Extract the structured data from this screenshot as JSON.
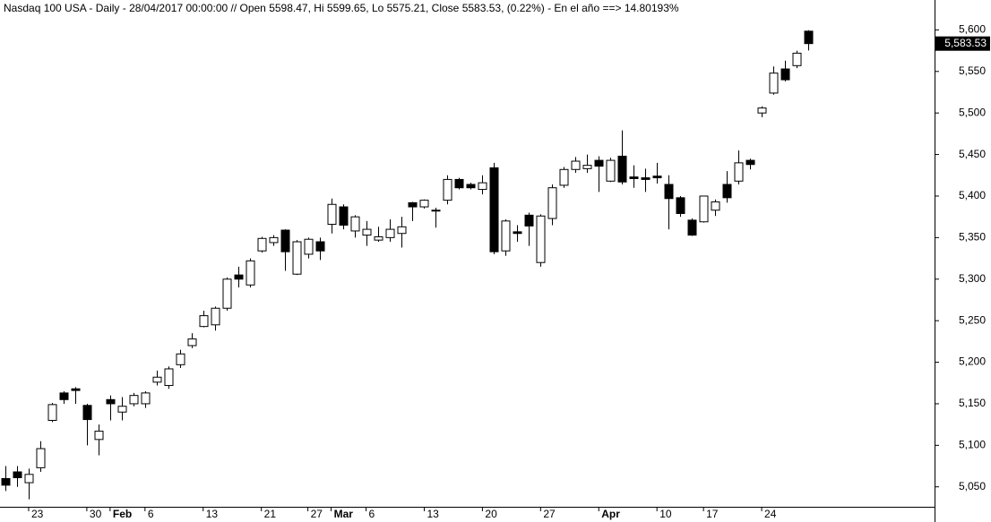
{
  "chart_data": {
    "type": "candlestick",
    "title": "Nasdaq 100 USA - Daily - 28/04/2017 00:00:00 // Open 5598.47, Hi 5599.65, Lo 5575.21, Close 5583.53, (0.22%) - En el año ==> 14.80193%",
    "categories": [
      null,
      null,
      "23",
      null,
      null,
      null,
      null,
      "30",
      null,
      "Feb",
      null,
      null,
      "6",
      null,
      null,
      null,
      null,
      "13",
      null,
      null,
      null,
      null,
      "21",
      null,
      null,
      null,
      "27",
      null,
      "Mar",
      null,
      null,
      "6",
      null,
      null,
      null,
      null,
      "13",
      null,
      null,
      null,
      null,
      "20",
      null,
      null,
      null,
      null,
      "27",
      null,
      null,
      null,
      null,
      "Apr",
      null,
      null,
      null,
      null,
      "10",
      null,
      null,
      null,
      "17",
      null,
      null,
      null,
      null,
      "24",
      null,
      null,
      null,
      null
    ],
    "open": [
      5060,
      5068,
      5055,
      5073,
      5130,
      5163,
      5168,
      5148,
      5107,
      5155,
      5140,
      5150,
      5150,
      5176,
      5172,
      5197,
      5220,
      5243,
      5245,
      5265,
      5305,
      5293,
      5334,
      5344,
      5359,
      5306,
      5330,
      5345,
      5366,
      5387,
      5358,
      5353,
      5347,
      5350,
      5355,
      5392,
      5387,
      5383,
      5395,
      5420,
      5414,
      5408,
      5434,
      5334,
      5357,
      5377,
      5320,
      5373,
      5413,
      5432,
      5433,
      5443,
      5418,
      5448,
      5423,
      5422,
      5424,
      5414,
      5398,
      5371,
      5369,
      5383,
      5414,
      5418,
      5443,
      5500,
      5524,
      5553,
      5557,
      5598.47
    ],
    "high": [
      5075,
      5075,
      5072,
      5105,
      5151,
      5165,
      5170,
      5150,
      5125,
      5160,
      5158,
      5163,
      5165,
      5190,
      5195,
      5215,
      5235,
      5262,
      5267,
      5302,
      5315,
      5325,
      5351,
      5353,
      5360,
      5347,
      5350,
      5350,
      5397,
      5390,
      5377,
      5370,
      5363,
      5372,
      5375,
      5393,
      5396,
      5386,
      5425,
      5422,
      5416,
      5425,
      5440,
      5372,
      5365,
      5380,
      5378,
      5414,
      5435,
      5447,
      5450,
      5448,
      5446,
      5479,
      5437,
      5433,
      5440,
      5425,
      5400,
      5373,
      5400,
      5396,
      5430,
      5455,
      5445,
      5508,
      5556,
      5563,
      5575,
      5599.65
    ],
    "low": [
      5045,
      5050,
      5035,
      5068,
      5128,
      5150,
      5150,
      5100,
      5088,
      5130,
      5130,
      5147,
      5145,
      5172,
      5168,
      5193,
      5217,
      5242,
      5238,
      5262,
      5290,
      5290,
      5332,
      5340,
      5310,
      5305,
      5325,
      5323,
      5355,
      5360,
      5350,
      5340,
      5345,
      5345,
      5338,
      5370,
      5385,
      5362,
      5390,
      5408,
      5408,
      5402,
      5330,
      5328,
      5345,
      5340,
      5315,
      5365,
      5410,
      5428,
      5428,
      5405,
      5417,
      5414,
      5410,
      5405,
      5415,
      5360,
      5375,
      5352,
      5368,
      5376,
      5392,
      5414,
      5432,
      5495,
      5522,
      5538,
      5554,
      5575.21
    ],
    "close": [
      5052,
      5061,
      5065,
      5096,
      5149,
      5155,
      5166,
      5131,
      5117,
      5150,
      5147,
      5160,
      5163,
      5182,
      5192,
      5210,
      5228,
      5256,
      5265,
      5300,
      5300,
      5322,
      5349,
      5350,
      5333,
      5345,
      5348,
      5334,
      5390,
      5365,
      5375,
      5360,
      5351,
      5360,
      5363,
      5387,
      5395,
      5382,
      5420,
      5410,
      5410,
      5416,
      5333,
      5370,
      5355,
      5364,
      5376,
      5410,
      5432,
      5442,
      5437,
      5436,
      5443,
      5417,
      5421,
      5420,
      5422,
      5397,
      5379,
      5353,
      5400,
      5393,
      5398,
      5440,
      5438,
      5506,
      5548,
      5540,
      5572,
      5583.53
    ],
    "close_label": "5,583.53",
    "up_color": "#ffffff",
    "down_color": "#000000",
    "ylim": [
      5026,
      5636
    ],
    "yticks": [
      {
        "value": 5050,
        "label": "5,050"
      },
      {
        "value": 5100,
        "label": "5,100"
      },
      {
        "value": 5150,
        "label": "5,150"
      },
      {
        "value": 5200,
        "label": "5,200"
      },
      {
        "value": 5250,
        "label": "5,250"
      },
      {
        "value": 5300,
        "label": "5,300"
      },
      {
        "value": 5350,
        "label": "5,350"
      },
      {
        "value": 5400,
        "label": "5,400"
      },
      {
        "value": 5450,
        "label": "5,450"
      },
      {
        "value": 5500,
        "label": "5,500"
      },
      {
        "value": 5550,
        "label": "5,550"
      },
      {
        "value": 5600,
        "label": "5,600"
      }
    ],
    "grid": false
  }
}
